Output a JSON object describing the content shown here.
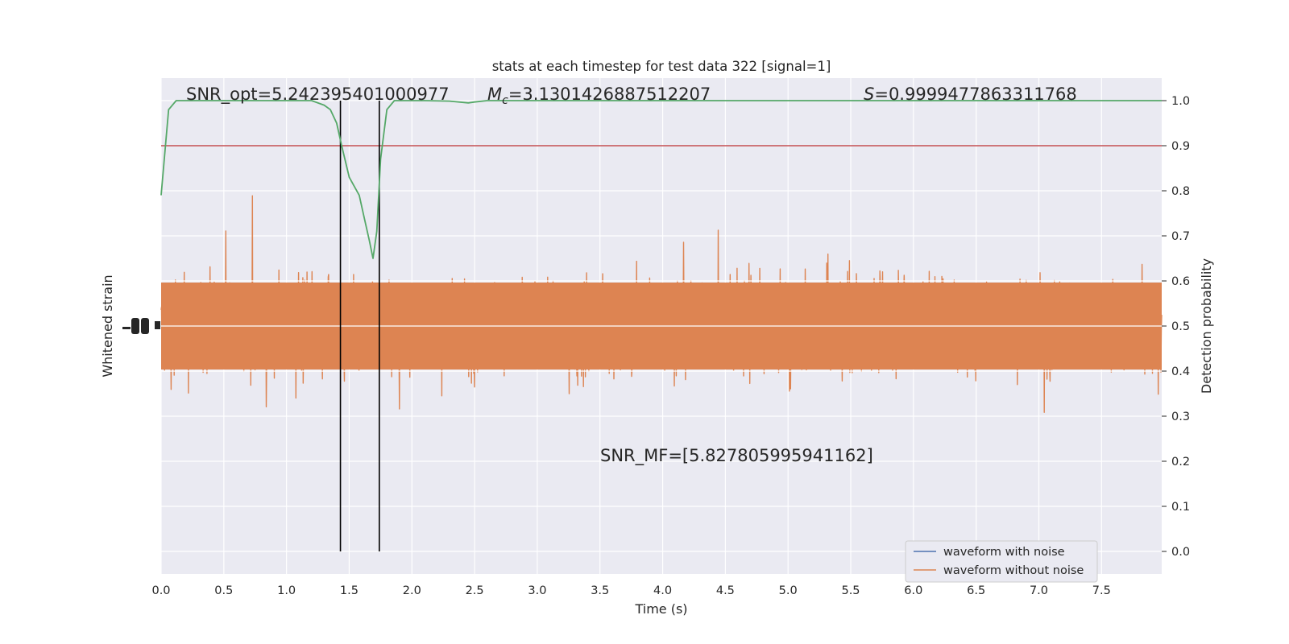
{
  "chart_data": {
    "type": "line",
    "title": "stats at each timestep for test data 322 [signal=1]",
    "xlabel": "Time (s)",
    "ylabel_left": "Whitened strain",
    "ylabel_right": "Detection probability",
    "xlim": [
      0.0,
      7.98
    ],
    "ylim_right": [
      -0.05,
      1.05
    ],
    "x_ticks": [
      "0.0",
      "0.5",
      "1.0",
      "1.5",
      "2.0",
      "2.5",
      "3.0",
      "3.5",
      "4.0",
      "4.5",
      "5.0",
      "5.5",
      "6.0",
      "6.5",
      "7.0",
      "7.5"
    ],
    "y_ticks_right": [
      "0.0",
      "0.1",
      "0.2",
      "0.3",
      "0.4",
      "0.5",
      "0.6",
      "0.7",
      "0.8",
      "0.9",
      "1.0"
    ],
    "grid": true,
    "legend_position": "lower-right",
    "annotations": {
      "snr_opt": "SNR_opt=5.242395401000977",
      "mc_symbol": "M",
      "mc_subscript": "c",
      "mc_value": "=3.1301426887512207",
      "s_symbol": "S",
      "s_value": "=0.9999477863311768",
      "snr_mf": "SNR_MF=[5.827805995941162]"
    },
    "series": [
      {
        "name": "waveform with noise",
        "color": "#4c72b0"
      },
      {
        "name": "waveform without noise",
        "color": "#dd8452"
      }
    ],
    "detection_probability": {
      "color": "#55a868",
      "x": [
        0.0,
        0.06,
        0.12,
        0.2,
        0.4,
        0.8,
        1.0,
        1.2,
        1.3,
        1.35,
        1.4,
        1.44,
        1.5,
        1.58,
        1.62,
        1.66,
        1.69,
        1.72,
        1.75,
        1.8,
        1.86,
        1.95,
        2.1,
        2.3,
        2.45,
        2.5,
        2.6,
        3.0,
        4.0,
        5.0,
        6.0,
        7.0,
        7.98
      ],
      "y": [
        0.79,
        0.98,
        1.0,
        1.0,
        1.0,
        1.0,
        1.0,
        1.0,
        0.99,
        0.98,
        0.95,
        0.9,
        0.83,
        0.79,
        0.74,
        0.69,
        0.65,
        0.71,
        0.87,
        0.98,
        1.0,
        1.0,
        1.0,
        0.999,
        0.995,
        0.997,
        1.0,
        1.0,
        1.0,
        1.0,
        1.0,
        1.0,
        1.0
      ]
    },
    "threshold": {
      "y": 0.9,
      "color": "#c44e52"
    },
    "vertical_markers": [
      1.43,
      1.74
    ]
  }
}
